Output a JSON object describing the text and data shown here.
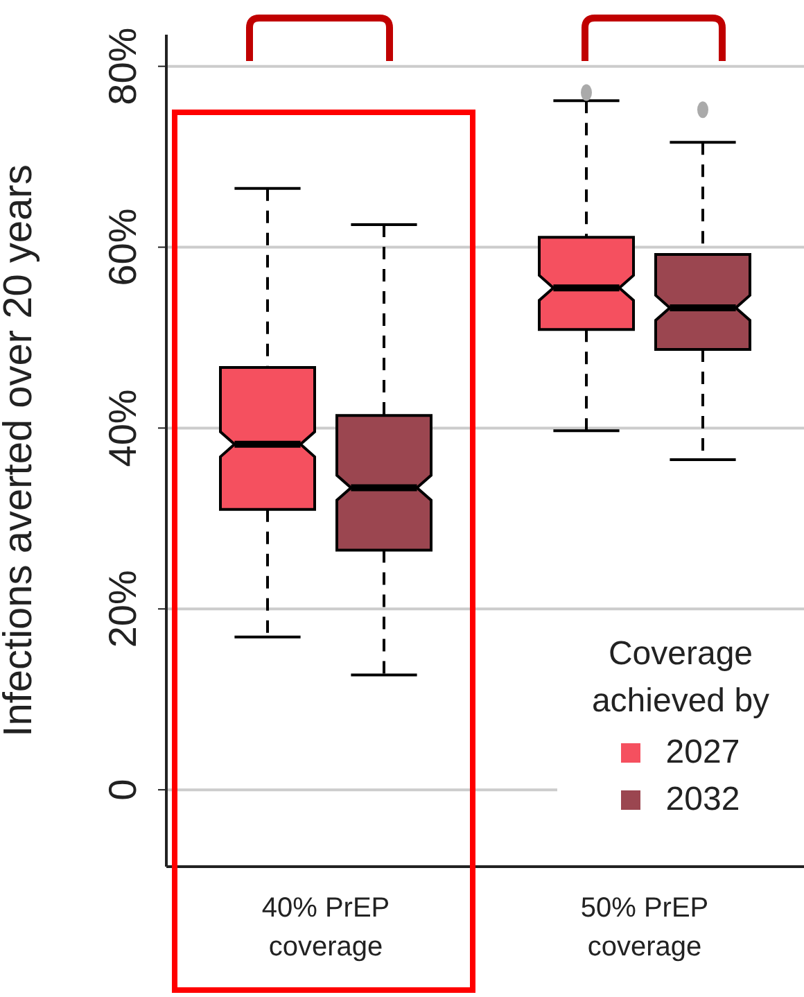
{
  "chart_data": {
    "type": "box",
    "ylabel": "Infections averted over 20 years",
    "legend_title": "Coverage achieved by",
    "categories": [
      "40% PrEP coverage",
      "50% PrEP coverage"
    ],
    "series": [
      {
        "name": "2027",
        "color": "#f5505f",
        "boxes": [
          {
            "low": 16.9,
            "q1": 31.0,
            "median": 38.2,
            "q3": 46.7,
            "high": 66.5
          },
          {
            "low": 39.7,
            "q1": 50.9,
            "median": 55.5,
            "q3": 61.1,
            "high": 76.2,
            "outliers": [
              77.1
            ]
          }
        ]
      },
      {
        "name": "2032",
        "color": "#9b4650",
        "boxes": [
          {
            "low": 12.7,
            "q1": 26.5,
            "median": 33.4,
            "q3": 41.4,
            "high": 62.5
          },
          {
            "low": 36.5,
            "q1": 48.7,
            "median": 53.3,
            "q3": 59.2,
            "high": 71.6,
            "outliers": [
              75.2
            ]
          }
        ]
      }
    ],
    "ylim": [
      -8.5,
      83.5
    ],
    "yticks": [
      0,
      {
        "value": 20,
        "label": "20%"
      },
      {
        "value": 40,
        "label": "40%"
      },
      {
        "value": 60,
        "label": "60%"
      },
      {
        "value": 80,
        "label": "80%"
      }
    ],
    "grid": "y",
    "legend": "bottom right"
  }
}
